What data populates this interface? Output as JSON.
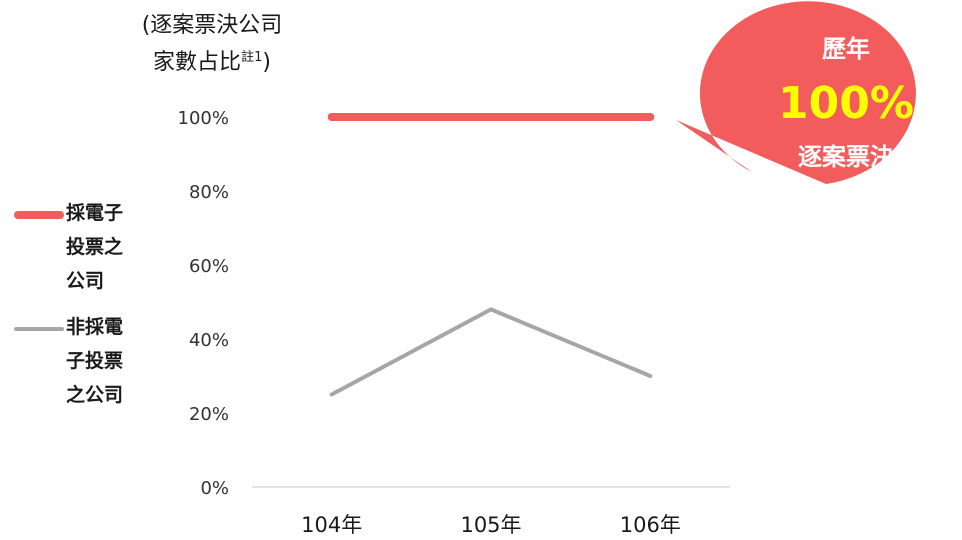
{
  "chart_data": {
    "type": "line",
    "categories": [
      "104年",
      "105年",
      "106年"
    ],
    "series": [
      {
        "name": "採電子投票之公司",
        "values": [
          100,
          100,
          100
        ],
        "color": "#f25c5c"
      },
      {
        "name": "非採電子投票之公司",
        "values": [
          25,
          48,
          30
        ],
        "color": "#a6a6a6"
      }
    ],
    "ylabel_line1": "(逐案票決公司",
    "ylabel_line2": "家數占比",
    "ylabel_footnote": "註1",
    "ylabel_close": ")",
    "ylim": [
      0,
      100
    ],
    "yticks": [
      "0%",
      "20%",
      "40%",
      "60%",
      "80%",
      "100%"
    ],
    "grid": false,
    "legend_position": "left"
  },
  "legend": {
    "electronic": {
      "line1": "採電子",
      "line2": "投票之",
      "line3": "公司"
    },
    "non_electronic": {
      "line1": "非採電",
      "line2": "子投票",
      "line3": "之公司"
    }
  },
  "callout": {
    "line1": "歷年",
    "value": "100%",
    "line3": "逐案票決",
    "fill_color": "#f25c5c",
    "value_color": "#ffff00",
    "text_color": "#ffffff"
  }
}
